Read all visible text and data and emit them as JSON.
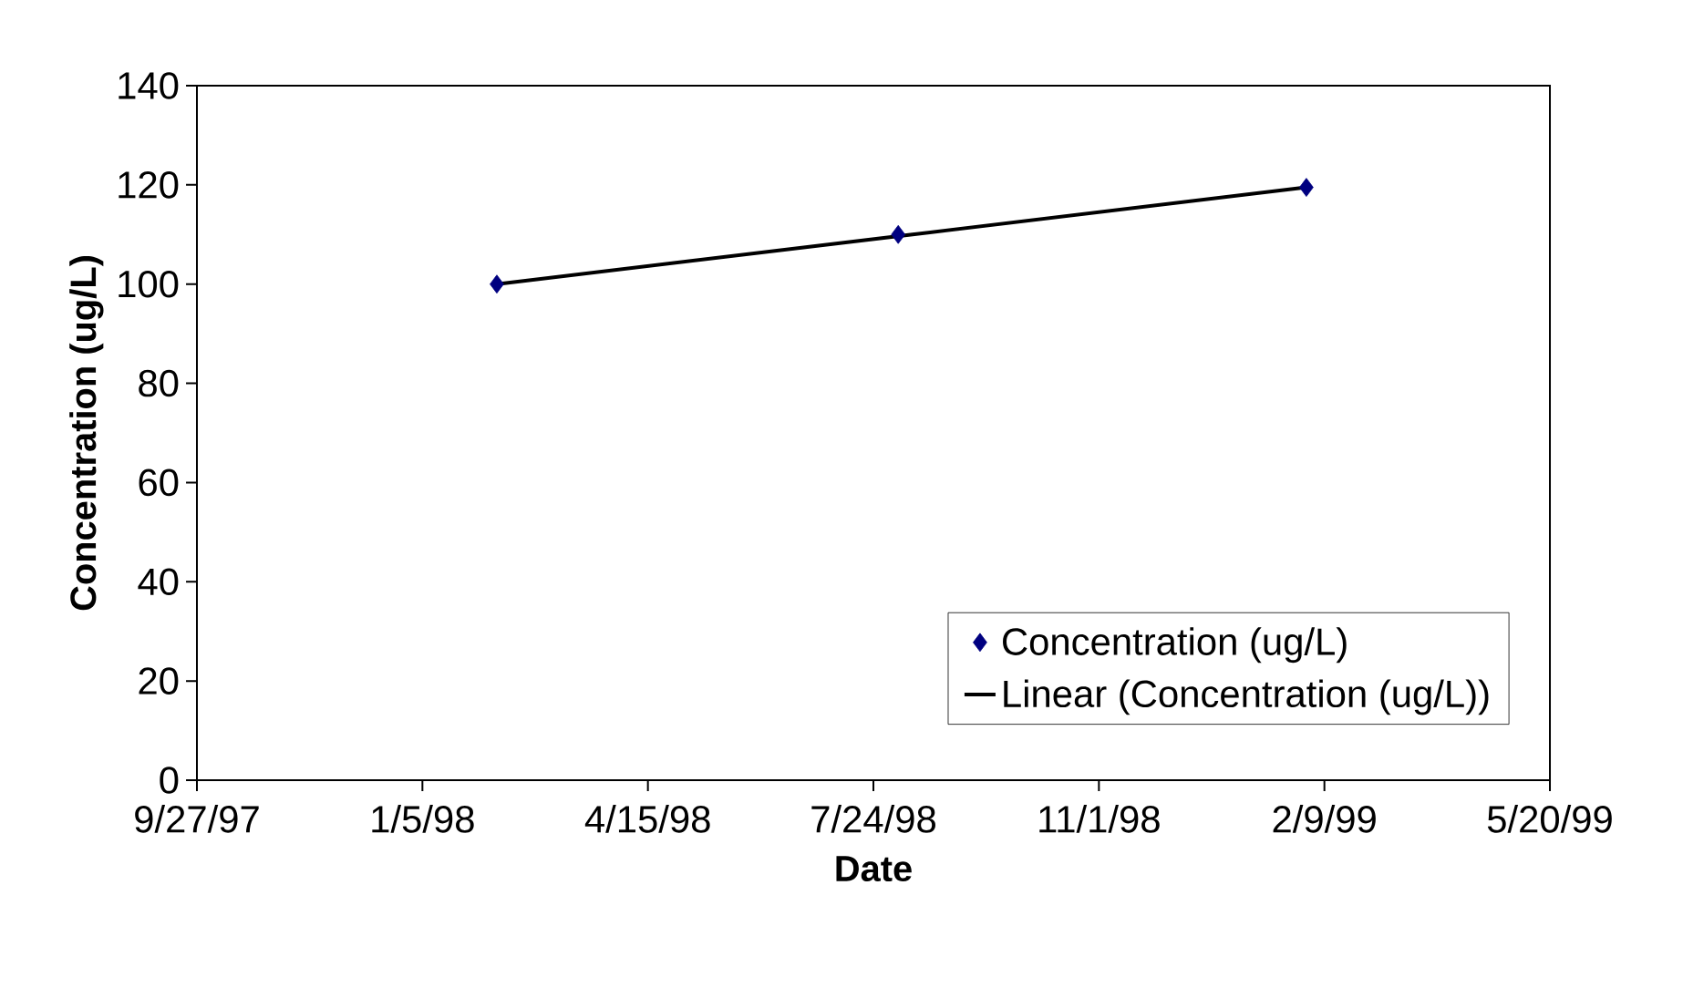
{
  "chart_data": {
    "type": "scatter",
    "xlabel": "Date",
    "ylabel": "Concentration (ug/L)",
    "series": [
      {
        "name": "Concentration (ug/L)",
        "color": "#000080",
        "marker": "diamond",
        "x": [
          "1998-02-07",
          "1998-08-04",
          "1999-02-01"
        ],
        "values": [
          100,
          110,
          119.5
        ]
      },
      {
        "name": "Linear (Concentration (ug/L))",
        "type": "line",
        "color": "#000000",
        "marker": "none",
        "line_style": "solid",
        "x": [
          "1998-02-07",
          "1999-02-01"
        ],
        "values": [
          100,
          119.5
        ]
      }
    ],
    "xlim": [
      "1997-09-27",
      "1999-05-20"
    ],
    "xticks": [
      {
        "value": "1997-09-27",
        "label": "9/27/97"
      },
      {
        "value": "1998-01-05",
        "label": "1/5/98"
      },
      {
        "value": "1998-04-15",
        "label": "4/15/98"
      },
      {
        "value": "1998-07-24",
        "label": "7/24/98"
      },
      {
        "value": "1998-11-01",
        "label": "11/1/98"
      },
      {
        "value": "1999-02-09",
        "label": "2/9/99"
      },
      {
        "value": "1999-05-20",
        "label": "5/20/99"
      }
    ],
    "ylim": [
      0,
      140
    ],
    "yticks": [
      0,
      20,
      40,
      60,
      80,
      100,
      120,
      140
    ],
    "grid": false,
    "legend": "bottom right"
  }
}
